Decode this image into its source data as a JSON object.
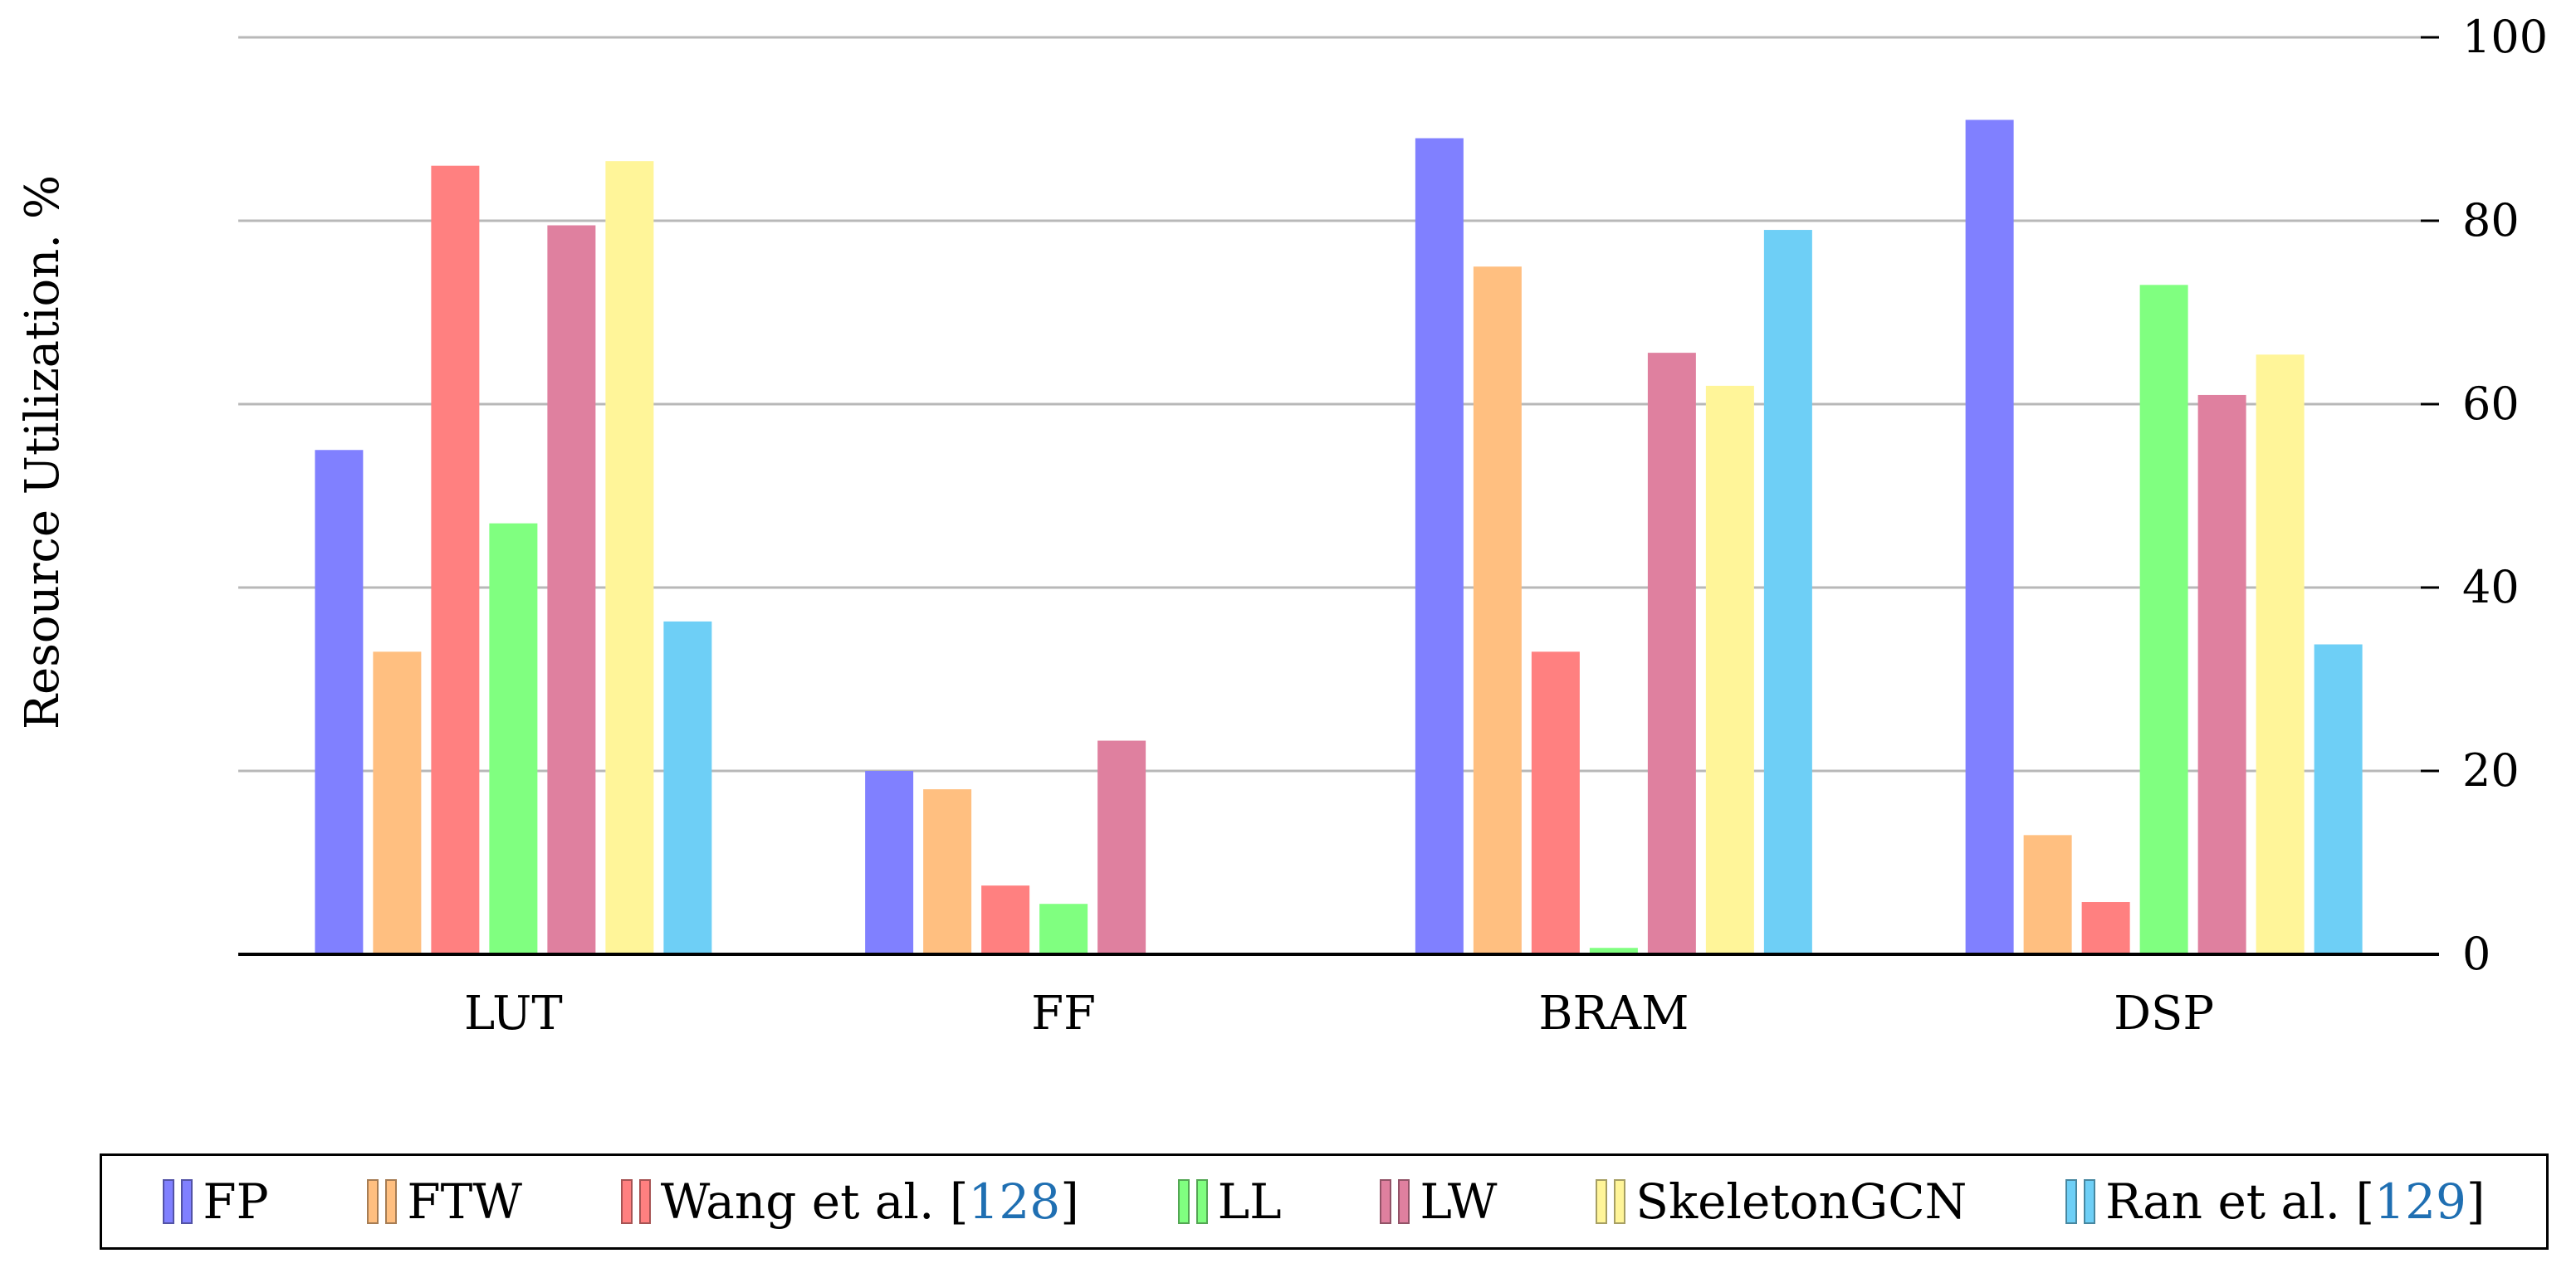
{
  "chart_data": {
    "type": "bar",
    "title": "",
    "xlabel": "",
    "ylabel": "Resource Utilization. %",
    "ylim": [
      0,
      100
    ],
    "yticks": [
      0,
      20,
      40,
      60,
      80,
      100
    ],
    "grid": true,
    "y_axis_side": "right",
    "legend_position": "bottom",
    "categories": [
      "LUT",
      "FF",
      "BRAM",
      "DSP"
    ],
    "series": [
      {
        "name": "FP",
        "color": "#8080ff",
        "values": [
          55,
          20,
          89,
          91
        ]
      },
      {
        "name": "FTW",
        "color": "#ffbf80",
        "values": [
          33,
          18,
          75,
          13
        ]
      },
      {
        "name": "Wang et al. [128]",
        "color": "#ff8080",
        "values": [
          86,
          7.5,
          33,
          5.7
        ]
      },
      {
        "name": "LL",
        "color": "#80ff80",
        "values": [
          47,
          5.5,
          0.7,
          73
        ]
      },
      {
        "name": "LW",
        "color": "#df809f",
        "values": [
          79.5,
          23.3,
          65.6,
          61
        ]
      },
      {
        "name": "SkeletonGCN",
        "color": "#fff599",
        "values": [
          86.5,
          0,
          62,
          65.4
        ]
      },
      {
        "name": "Ran et al. [129]",
        "color": "#6ecff6",
        "values": [
          36.3,
          0,
          79,
          33.8
        ]
      }
    ]
  },
  "legend": {
    "items": [
      {
        "label": "FP",
        "ref": ""
      },
      {
        "label": "FTW",
        "ref": ""
      },
      {
        "label": "Wang et al. [",
        "ref": "128",
        "suffix": "]"
      },
      {
        "label": "LL",
        "ref": ""
      },
      {
        "label": "LW",
        "ref": ""
      },
      {
        "label": "SkeletonGCN",
        "ref": ""
      },
      {
        "label": "Ran et al. [",
        "ref": "129",
        "suffix": "]"
      }
    ]
  }
}
